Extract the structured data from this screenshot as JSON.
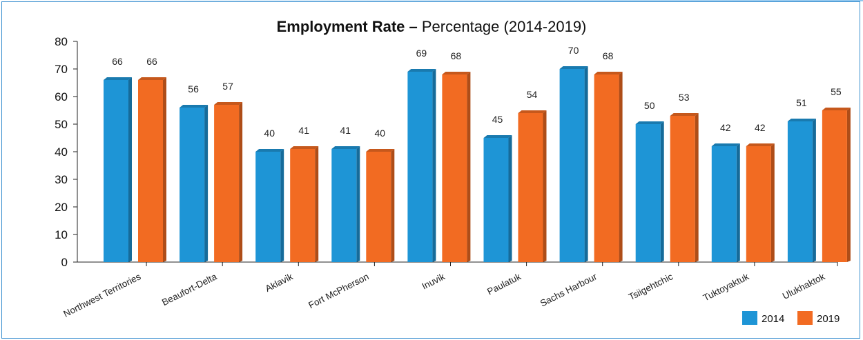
{
  "chart_data": {
    "type": "bar",
    "title_bold": "Employment Rate –",
    "title_rest": " Percentage (2014-2019)",
    "categories": [
      "Northwest Territories",
      "Beaufort-Delta",
      "Aklavik",
      "Fort McPherson",
      "Inuvik",
      "Paulatuk",
      "Sachs Harbour",
      "Tsiigehtchic",
      "Tuktoyaktuk",
      "Ulukhaktok"
    ],
    "series": [
      {
        "name": "2014",
        "color": "#1e95d6",
        "values": [
          66,
          56,
          40,
          41,
          69,
          45,
          70,
          50,
          42,
          51
        ]
      },
      {
        "name": "2019",
        "color": "#f26b22",
        "values": [
          66,
          57,
          41,
          40,
          68,
          54,
          68,
          53,
          42,
          55
        ]
      }
    ],
    "ylim": [
      0,
      80
    ],
    "yticks": [
      0,
      10,
      20,
      30,
      40,
      50,
      60,
      70,
      80
    ],
    "data_labels": true,
    "legend_position": "bottom-right"
  }
}
